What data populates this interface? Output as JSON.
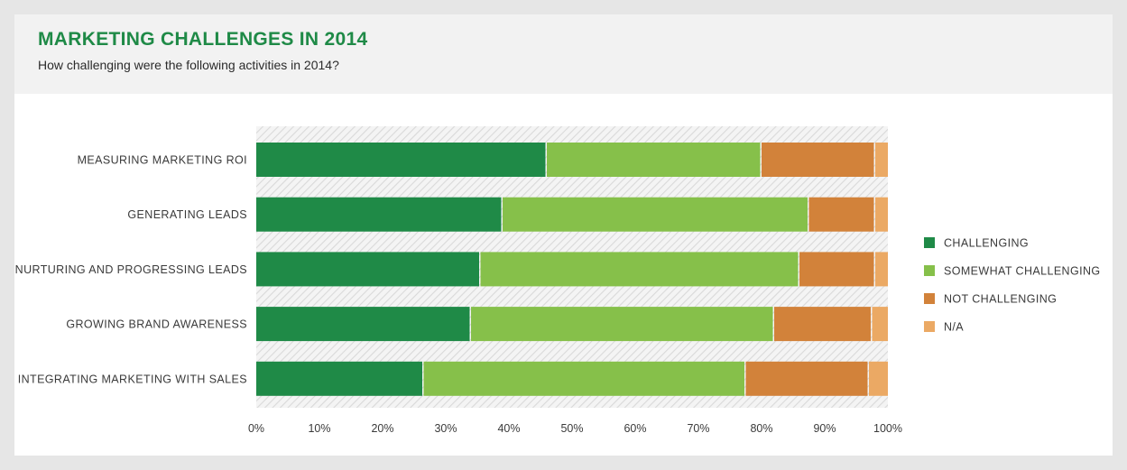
{
  "header": {
    "title": "MARKETING CHALLENGES IN 2014",
    "subtitle": "How challenging were the following activities in 2014?"
  },
  "chart_data": {
    "type": "bar",
    "orientation": "horizontal",
    "stacked": true,
    "title": "MARKETING CHALLENGES IN 2014",
    "subtitle": "How challenging were the following activities in 2014?",
    "categories": [
      "MEASURING MARKETING ROI",
      "GENERATING LEADS",
      "NURTURING AND PROGRESSING LEADS",
      "GROWING BRAND AWARENESS",
      "INTEGRATING MARKETING WITH SALES"
    ],
    "series": [
      {
        "name": "CHALLENGING",
        "color": "#1f8a47",
        "values": [
          46,
          39,
          35.5,
          34,
          26.5
        ]
      },
      {
        "name": "SOMEWHAT CHALLENGING",
        "color": "#86c04a",
        "values": [
          34,
          48.5,
          50.5,
          48,
          51
        ]
      },
      {
        "name": "NOT CHALLENGING",
        "color": "#d2823a",
        "values": [
          18,
          10.5,
          12,
          15.5,
          19.5
        ]
      },
      {
        "name": "N/A",
        "color": "#eba964",
        "values": [
          2,
          2,
          2,
          2.5,
          3
        ]
      }
    ],
    "x_ticks": [
      "0%",
      "10%",
      "20%",
      "30%",
      "40%",
      "50%",
      "60%",
      "70%",
      "80%",
      "90%",
      "100%"
    ],
    "xlim": [
      0,
      100
    ],
    "grid": false,
    "legend_position": "right"
  }
}
